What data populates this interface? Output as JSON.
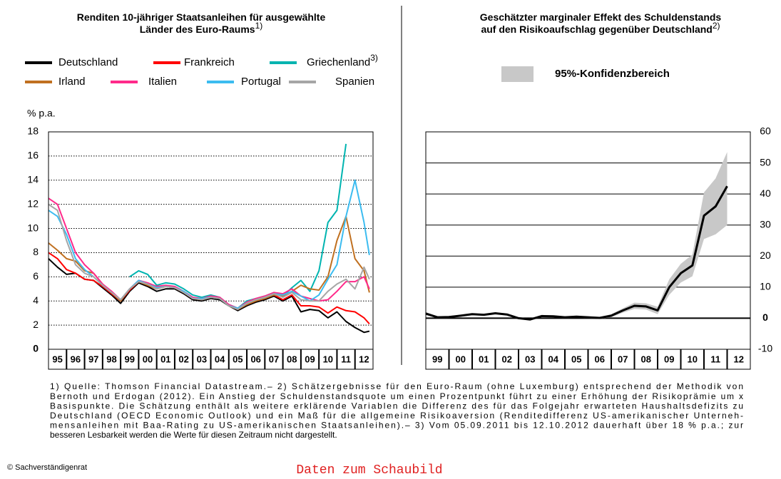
{
  "chart_data": [
    {
      "type": "line",
      "title": [
        "Renditen 10-jähriger Staatsanleihen für ausgewählte",
        "Länder des Euro-Raums"
      ],
      "title_note": "1)",
      "y_label": "% p.a.",
      "x": [
        1995.0,
        1995.5,
        1996.0,
        1996.5,
        1997.0,
        1997.5,
        1998.0,
        1998.5,
        1999.0,
        1999.5,
        2000.0,
        2000.5,
        2001.0,
        2001.5,
        2002.0,
        2002.5,
        2003.0,
        2003.5,
        2004.0,
        2004.5,
        2005.0,
        2005.5,
        2006.0,
        2006.5,
        2007.0,
        2007.5,
        2008.0,
        2008.5,
        2009.0,
        2009.5,
        2010.0,
        2010.5,
        2011.0,
        2011.5,
        2012.0,
        2012.5,
        2012.8
      ],
      "series": [
        {
          "name": "Deutschland",
          "color": "#000000",
          "values": [
            7.5,
            6.8,
            6.2,
            6.3,
            5.8,
            5.7,
            5.1,
            4.5,
            3.8,
            4.8,
            5.5,
            5.2,
            4.8,
            5.0,
            5.0,
            4.6,
            4.1,
            4.0,
            4.2,
            4.1,
            3.6,
            3.2,
            3.6,
            3.9,
            4.1,
            4.4,
            4.0,
            4.4,
            3.1,
            3.3,
            3.2,
            2.6,
            3.1,
            2.3,
            1.8,
            1.4,
            1.5
          ]
        },
        {
          "name": "Frankreich",
          "color": "#ff0000",
          "values": [
            8.0,
            7.5,
            6.6,
            6.3,
            5.8,
            5.7,
            5.2,
            4.6,
            4.0,
            4.9,
            5.6,
            5.3,
            5.0,
            5.2,
            5.1,
            4.7,
            4.2,
            4.1,
            4.3,
            4.2,
            3.6,
            3.3,
            3.7,
            4.0,
            4.2,
            4.5,
            4.1,
            4.5,
            3.6,
            3.6,
            3.5,
            3.0,
            3.5,
            3.2,
            3.1,
            2.6,
            2.1
          ]
        },
        {
          "name": "Griechenland",
          "name_note": "3)",
          "color": "#00b4b0",
          "values": [
            null,
            null,
            null,
            null,
            null,
            null,
            null,
            null,
            null,
            6.0,
            6.5,
            6.2,
            5.3,
            5.5,
            5.4,
            5.0,
            4.5,
            4.3,
            4.5,
            4.3,
            3.7,
            3.4,
            4.0,
            4.2,
            4.4,
            4.7,
            4.4,
            5.1,
            5.7,
            4.8,
            6.5,
            10.5,
            11.5,
            17.0,
            null,
            null,
            17.5
          ]
        },
        {
          "name": "Irland",
          "color": "#c07020",
          "values": [
            8.8,
            8.2,
            7.5,
            7.3,
            6.5,
            6.3,
            5.4,
            4.7,
            4.0,
            5.0,
            5.6,
            5.3,
            5.0,
            5.2,
            5.1,
            4.7,
            4.2,
            4.1,
            4.3,
            4.2,
            3.6,
            3.3,
            3.7,
            4.0,
            4.2,
            4.5,
            4.4,
            4.8,
            5.3,
            5.0,
            4.9,
            6.0,
            9.0,
            11.0,
            7.5,
            6.5,
            4.7
          ]
        },
        {
          "name": "Italien",
          "color": "#ff2a8a",
          "values": [
            12.5,
            12.0,
            10.0,
            8.0,
            7.0,
            6.3,
            5.4,
            4.8,
            4.1,
            5.0,
            5.7,
            5.5,
            5.2,
            5.3,
            5.2,
            4.8,
            4.3,
            4.2,
            4.4,
            4.3,
            3.7,
            3.4,
            3.9,
            4.2,
            4.4,
            4.7,
            4.6,
            5.0,
            4.4,
            4.2,
            4.0,
            4.1,
            4.8,
            5.6,
            5.6,
            6.0,
            5.0
          ]
        },
        {
          "name": "Portugal",
          "color": "#3cbcf0",
          "values": [
            11.5,
            11.0,
            9.5,
            7.5,
            6.6,
            6.0,
            5.3,
            4.7,
            4.1,
            5.0,
            5.7,
            5.4,
            5.1,
            5.2,
            5.1,
            4.8,
            4.2,
            4.2,
            4.3,
            4.2,
            3.6,
            3.4,
            3.8,
            4.1,
            4.3,
            4.6,
            4.5,
            4.8,
            4.4,
            4.0,
            4.5,
            5.8,
            7.0,
            11.0,
            14.0,
            10.5,
            7.8
          ]
        },
        {
          "name": "Spanien",
          "color": "#a6a6a6",
          "values": [
            12.0,
            11.5,
            9.0,
            7.0,
            6.3,
            6.0,
            5.3,
            4.7,
            4.1,
            5.0,
            5.6,
            5.4,
            5.0,
            5.2,
            5.1,
            4.7,
            4.2,
            4.1,
            4.3,
            4.2,
            3.6,
            3.3,
            3.8,
            4.1,
            4.3,
            4.6,
            4.3,
            4.7,
            4.1,
            4.0,
            4.0,
            4.8,
            5.4,
            5.8,
            5.0,
            6.8,
            5.8
          ]
        }
      ],
      "xlim": [
        1995,
        2013
      ],
      "xticks": [
        {
          "value": 1995.5,
          "label": "95"
        },
        {
          "value": 1996.5,
          "label": "96"
        },
        {
          "value": 1997.5,
          "label": "97"
        },
        {
          "value": 1998.5,
          "label": "98"
        },
        {
          "value": 1999.5,
          "label": "99"
        },
        {
          "value": 2000.5,
          "label": "00"
        },
        {
          "value": 2001.5,
          "label": "01"
        },
        {
          "value": 2002.5,
          "label": "02"
        },
        {
          "value": 2003.5,
          "label": "03"
        },
        {
          "value": 2004.5,
          "label": "04"
        },
        {
          "value": 2005.5,
          "label": "05"
        },
        {
          "value": 2006.5,
          "label": "06"
        },
        {
          "value": 2007.5,
          "label": "07"
        },
        {
          "value": 2008.5,
          "label": "08"
        },
        {
          "value": 2009.5,
          "label": "09"
        },
        {
          "value": 2010.5,
          "label": "10"
        },
        {
          "value": 2011.5,
          "label": "11"
        },
        {
          "value": 2012.5,
          "label": "12"
        }
      ],
      "ylim": [
        0,
        18
      ],
      "yticks": [
        0,
        2,
        4,
        6,
        8,
        10,
        12,
        14,
        16,
        18
      ],
      "grid": "dotted",
      "y_axis_side": "left"
    },
    {
      "type": "line",
      "title": [
        "Geschätzter marginaler Effekt des Schuldenstands",
        "auf den Risikoaufschlag gegenüber Deutschland"
      ],
      "title_note": "2)",
      "x": [
        1999.0,
        1999.5,
        2000.0,
        2000.5,
        2001.0,
        2001.5,
        2002.0,
        2002.5,
        2003.0,
        2003.5,
        2004.0,
        2004.5,
        2005.0,
        2005.5,
        2006.0,
        2006.5,
        2007.0,
        2007.5,
        2008.0,
        2008.5,
        2009.0,
        2009.5,
        2010.0,
        2010.5,
        2011.0,
        2011.5,
        2012.0
      ],
      "band": {
        "name": "95%-Konfidenzbereich",
        "color": "#c8c8c8",
        "lower": [
          1.0,
          0,
          0.1,
          0.5,
          1.0,
          0.8,
          1.3,
          0.9,
          -0.3,
          -0.7,
          0.4,
          0.3,
          0,
          0.2,
          0,
          -0.2,
          0.3,
          1.8,
          3.0,
          2.8,
          1.3,
          7.5,
          11.5,
          13.5,
          25.5,
          27.0,
          30.0
        ],
        "upper": [
          2.0,
          0.6,
          0.7,
          1.1,
          1.6,
          1.4,
          1.9,
          1.5,
          0.3,
          -0.1,
          1.0,
          0.9,
          0.6,
          0.8,
          0.6,
          0.4,
          1.3,
          3.2,
          5.0,
          4.8,
          3.7,
          12.5,
          17.5,
          20.5,
          40.5,
          45.0,
          53.5
        ]
      },
      "series": [
        {
          "color": "#000000",
          "values": [
            1.5,
            0.3,
            0.4,
            0.8,
            1.3,
            1.1,
            1.6,
            1.2,
            0,
            -0.4,
            0.7,
            0.6,
            0.3,
            0.5,
            0.3,
            0.1,
            0.8,
            2.5,
            4.0,
            3.8,
            2.5,
            10.0,
            14.5,
            17.0,
            33.0,
            36.0,
            42.5
          ]
        }
      ],
      "xlim": [
        1999,
        2013
      ],
      "xticks": [
        {
          "value": 1999.5,
          "label": "99"
        },
        {
          "value": 2000.5,
          "label": "00"
        },
        {
          "value": 2001.5,
          "label": "01"
        },
        {
          "value": 2002.5,
          "label": "02"
        },
        {
          "value": 2003.5,
          "label": "03"
        },
        {
          "value": 2004.5,
          "label": "04"
        },
        {
          "value": 2005.5,
          "label": "05"
        },
        {
          "value": 2006.5,
          "label": "06"
        },
        {
          "value": 2007.5,
          "label": "07"
        },
        {
          "value": 2008.5,
          "label": "08"
        },
        {
          "value": 2009.5,
          "label": "09"
        },
        {
          "value": 2010.5,
          "label": "10"
        },
        {
          "value": 2011.5,
          "label": "11"
        },
        {
          "value": 2012.5,
          "label": "12"
        }
      ],
      "ylim": [
        -10,
        60
      ],
      "yticks": [
        -10,
        0,
        10,
        20,
        30,
        40,
        50,
        60
      ],
      "grid": "solid",
      "y_axis_side": "right"
    }
  ],
  "footnote": [
    "1) Quelle: Thomson Financial Datastream.– 2) Schätzergebnisse für den Euro-Raum (ohne Luxemburg) entsprechend der Methodik von",
    "Bernoth und Erdogan (2012). Ein Anstieg der Schuldenstandsquote um einen Prozentpunkt führt zu einer Erhöhung der Risikoprämie um x",
    "Basispunkte. Die Schätzung enthält als weitere erklärende Variablen die Differenz des für das Folgejahr erwarteten Haushaltsdefizits zu",
    "Deutschland (OECD Economic Outlook) und ein Maß für die allgemeine Risikoaversion (Renditedifferenz US-amerikanischer Unterneh-",
    "mensanleihen mit Baa-Rating zu US-amerikanischen Staatsanleihen).– 3) Vom 05.09.2011 bis 12.10.2012 dauerhaft über 18 % p.a.; zur",
    "besseren Lesbarkeit werden die Werte für diesen Zeitraum nicht dargestellt."
  ],
  "source": "© Sachverständigenrat",
  "link": "Daten zum Schaubild"
}
